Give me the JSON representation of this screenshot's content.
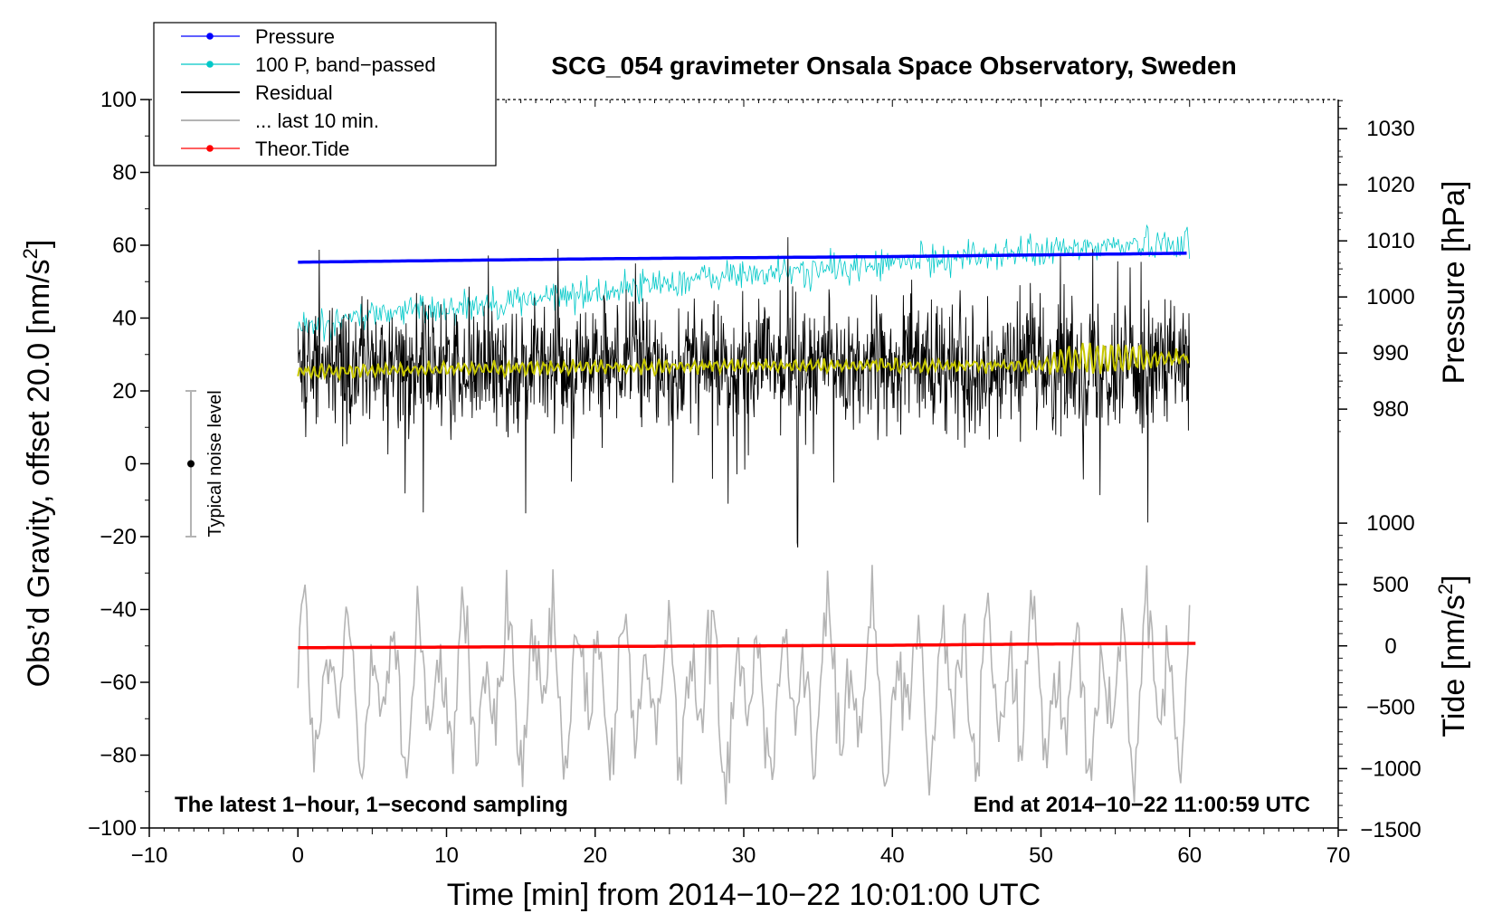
{
  "chart_data": {
    "type": "line",
    "title": "SCG_054 gravimeter Onsala Space Observatory, Sweden",
    "xlabel": "Time [min] from 2014−10−22 10:01:00 UTC",
    "ylabel_left_main": "Obs’d Gravity, offset 20.0 [nm/s",
    "ylabel_left_sup": "2",
    "ylabel_left_end": "]",
    "ylabel_right_pressure": "Pressure [hPa]",
    "ylabel_right_tide_main": "Tide [nm/s",
    "ylabel_right_tide_sup": "2",
    "ylabel_right_tide_end": "]",
    "xlim": [
      -10,
      70
    ],
    "ylim": [
      -100,
      100
    ],
    "x_ticks": [
      -10,
      0,
      10,
      20,
      30,
      40,
      50,
      60,
      70
    ],
    "x_tick_labels": [
      "−10",
      "0",
      "10",
      "20",
      "30",
      "40",
      "50",
      "60",
      "70"
    ],
    "y_ticks": [
      -100,
      -80,
      -60,
      -40,
      -20,
      0,
      20,
      40,
      60,
      80,
      100
    ],
    "y_tick_labels": [
      "−100",
      "−80",
      "−60",
      "−40",
      "−20",
      "0",
      "20",
      "40",
      "60",
      "80",
      "100"
    ],
    "pressure_axis": {
      "ticks": [
        980,
        990,
        1000,
        1010,
        1020,
        1030
      ],
      "tick_labels": [
        "980",
        "990",
        "1000",
        "1010",
        "1020",
        "1030"
      ],
      "map_value": [
        980,
        990
      ],
      "map_gravity": [
        15,
        30.4
      ]
    },
    "tide_axis": {
      "ticks": [
        -1500,
        -1000,
        -500,
        0,
        500,
        1000
      ],
      "tick_labels": [
        "−1500",
        "−1000",
        "−500",
        "0",
        "500",
        "1000"
      ],
      "map_value": [
        0,
        1000
      ],
      "map_gravity": [
        -50,
        -16.3
      ]
    },
    "annotations": {
      "left": "The latest 1−hour, 1−second sampling",
      "right": "End at 2014−10−22 11:00:59 UTC",
      "noise": "Typical noise level"
    },
    "noise_bar": {
      "x": -7.2,
      "center": 0,
      "half_range": 20
    },
    "legend": {
      "position": "top-left",
      "entries": [
        {
          "label": "Pressure",
          "color": "#0000ff",
          "marker": true
        },
        {
          "label": "100 P, band−passed",
          "color": "#00c8c8",
          "marker": true
        },
        {
          "label": "Residual",
          "color": "#000000",
          "marker": false
        },
        {
          "label": "... last 10 min.",
          "color": "#b4b4b4",
          "marker": false
        },
        {
          "label": "Theor.Tide",
          "color": "#ff0000",
          "marker": true
        }
      ]
    },
    "series": [
      {
        "name": "Pressure",
        "color": "#0000ff",
        "axis": "pressure",
        "x": [
          0,
          10,
          20,
          30,
          40,
          50,
          60
        ],
        "values": [
          1006.2,
          1006.5,
          1006.8,
          1007.0,
          1007.2,
          1007.5,
          1007.8
        ]
      },
      {
        "name": "100 P, band−passed",
        "color": "#00c8c8",
        "axis": "gravity",
        "x": [
          0,
          5,
          10,
          15,
          20,
          25,
          30,
          35,
          40,
          45,
          50,
          55,
          60
        ],
        "values": [
          37,
          41,
          43,
          45,
          47,
          50,
          52,
          53,
          55,
          57,
          58,
          60,
          61
        ]
      },
      {
        "name": "Residual",
        "color": "#000000",
        "axis": "gravity",
        "x": [
          0,
          60
        ],
        "values": [
          27,
          27
        ],
        "note": "1-second sampled residual fluctuating roughly between 0 and 55 nm/s2, extremes between -23 and 64"
      },
      {
        "name": "... last 10 min.",
        "color": "#b4b4b4",
        "axis": "gravity",
        "x": [
          0,
          60
        ],
        "values": [
          -62,
          -62
        ],
        "note": "oscillating roughly between -98 and -25"
      },
      {
        "name": "Residual trend",
        "color": "#c8c800",
        "axis": "gravity",
        "x": [
          0,
          10,
          20,
          30,
          40,
          50,
          52,
          55,
          60
        ],
        "values": [
          25,
          26,
          26.5,
          27,
          27,
          27,
          29,
          29,
          29
        ]
      },
      {
        "name": "Theor.Tide",
        "color": "#ff0000",
        "axis": "tide",
        "x": [
          0,
          10,
          20,
          30,
          40,
          50,
          60
        ],
        "values": [
          -15,
          -10,
          -5,
          0,
          5,
          15,
          20
        ]
      }
    ]
  }
}
